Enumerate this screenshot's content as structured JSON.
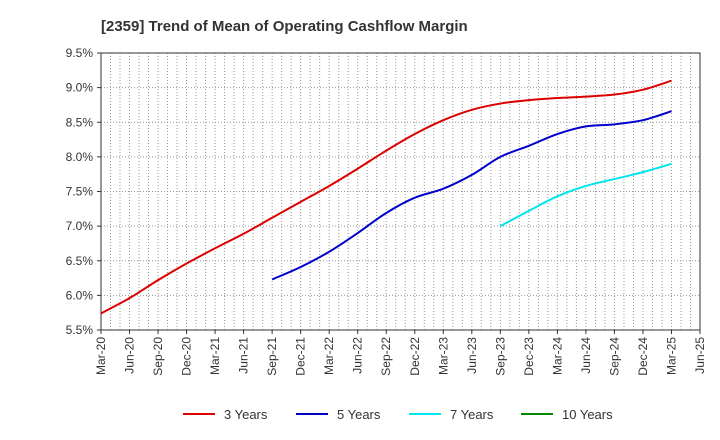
{
  "chart_data": {
    "type": "line",
    "title": "[2359]  Trend of Mean of Operating Cashflow Margin",
    "xlabel": "",
    "ylabel": "",
    "x_ticks": [
      "Mar-20",
      "Jun-20",
      "Sep-20",
      "Dec-20",
      "Mar-21",
      "Jun-21",
      "Sep-21",
      "Dec-21",
      "Mar-22",
      "Jun-22",
      "Sep-22",
      "Dec-22",
      "Mar-23",
      "Jun-23",
      "Sep-23",
      "Dec-23",
      "Mar-24",
      "Jun-24",
      "Sep-24",
      "Dec-24",
      "Mar-25",
      "Jun-25"
    ],
    "y_ticks": [
      "5.5%",
      "6.0%",
      "6.5%",
      "7.0%",
      "7.5%",
      "8.0%",
      "8.5%",
      "9.0%",
      "9.5%"
    ],
    "ylim": [
      5.5,
      9.5
    ],
    "y_unit": "%",
    "grid": true,
    "legend_position": "bottom",
    "series": [
      {
        "name": "3 Years",
        "color": "#dd0000",
        "x": [
          "Mar-20",
          "Jun-20",
          "Sep-20",
          "Dec-20",
          "Mar-21",
          "Jun-21",
          "Sep-21",
          "Dec-21",
          "Mar-22",
          "Jun-22",
          "Sep-22",
          "Dec-22",
          "Mar-23",
          "Jun-23",
          "Sep-23",
          "Dec-23",
          "Mar-24",
          "Jun-24",
          "Sep-24",
          "Dec-24",
          "Mar-25"
        ],
        "values": [
          5.74,
          5.96,
          6.22,
          6.46,
          6.68,
          6.89,
          7.12,
          7.35,
          7.58,
          7.83,
          8.09,
          8.33,
          8.53,
          8.68,
          8.77,
          8.82,
          8.85,
          8.87,
          8.9,
          8.97,
          9.1
        ]
      },
      {
        "name": "5 Years",
        "color": "#0000cc",
        "x": [
          "Sep-21",
          "Dec-21",
          "Mar-22",
          "Jun-22",
          "Sep-22",
          "Dec-22",
          "Mar-23",
          "Jun-23",
          "Sep-23",
          "Dec-23",
          "Mar-24",
          "Jun-24",
          "Sep-24",
          "Dec-24",
          "Mar-25"
        ],
        "values": [
          6.23,
          6.41,
          6.63,
          6.9,
          7.19,
          7.41,
          7.54,
          7.74,
          8.0,
          8.16,
          8.33,
          8.44,
          8.47,
          8.53,
          8.66
        ]
      },
      {
        "name": "7 Years",
        "color": "#00e5ee",
        "x": [
          "Sep-23",
          "Dec-23",
          "Mar-24",
          "Jun-24",
          "Sep-24",
          "Dec-24",
          "Mar-25"
        ],
        "values": [
          7.0,
          7.22,
          7.43,
          7.58,
          7.68,
          7.78,
          7.9
        ]
      },
      {
        "name": "10 Years",
        "color": "#008800",
        "x": [],
        "values": []
      }
    ]
  }
}
